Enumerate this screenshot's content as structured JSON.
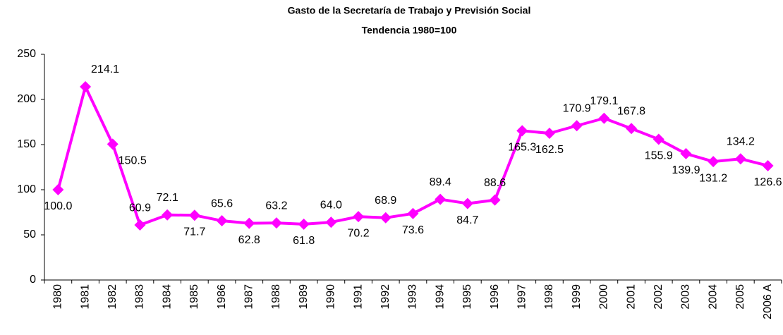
{
  "chart_data": {
    "type": "line",
    "title": "Gasto de la Secretaría de Trabajo y Previsión Social",
    "subtitle": "Tendencia 1980=100",
    "categories": [
      "1980",
      "1981",
      "1982",
      "1983",
      "1984",
      "1985",
      "1986",
      "1987",
      "1988",
      "1989",
      "1990",
      "1991",
      "1992",
      "1993",
      "1994",
      "1995",
      "1996",
      "1997",
      "1998",
      "1999",
      "2000",
      "2001",
      "2002",
      "2003",
      "2004",
      "2005",
      "2006 A"
    ],
    "series": [
      {
        "color": "#ff00ff",
        "values": [
          100,
          214.1,
          150.5,
          60.9,
          72.1,
          71.7,
          65.6,
          62.8,
          63.2,
          61.8,
          64,
          70.2,
          68.9,
          73.6,
          89.4,
          84.7,
          88.6,
          165.3,
          162.5,
          170.9,
          179.1,
          167.8,
          155.9,
          139.9,
          131.2,
          134.2,
          126.6
        ],
        "value_labels": [
          "100.0",
          "214.1",
          "150.5",
          "60.9",
          "72.1",
          "71.7",
          "65.6",
          "62.8",
          "63.2",
          "61.8",
          "64.0",
          "70.2",
          "68.9",
          "73.6",
          "89.4",
          "84.7",
          "88.6",
          "165.3",
          "162.5",
          "170.9",
          "179.1",
          "167.8",
          "155.9",
          "139.9",
          "131.2",
          "134.2",
          "126.6"
        ]
      }
    ],
    "ylim": [
      0,
      250
    ],
    "yticks": [
      0,
      50,
      100,
      150,
      200,
      250
    ],
    "grid": false
  }
}
